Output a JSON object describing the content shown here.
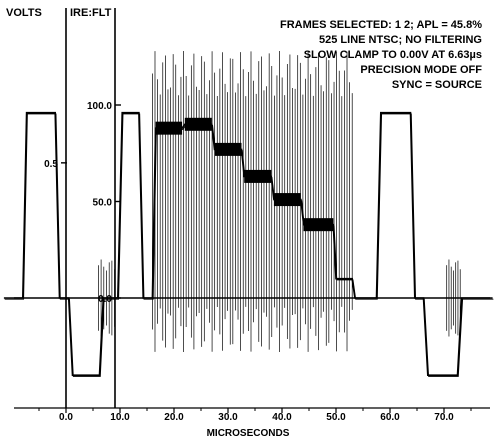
{
  "chart_data": {
    "type": "line",
    "title": "",
    "header_lines": [
      "FRAMES SELECTED: 1 2; APL = 45.8%",
      "525 LINE NTSC; NO FILTERING",
      "SLOW CLAMP TO 0.00V AT 6.63µs",
      "PRECISION MODE OFF",
      "SYNC = SOURCE"
    ],
    "left_axis_label": "VOLTS",
    "right_axis_label": "IRE:FLT",
    "xlabel": "MICROSECONDS",
    "xlim": [
      -11.5,
      79
    ],
    "ylim_ire": [
      -50,
      133
    ],
    "x_ticks": [
      {
        "v": 0,
        "label": "0.0"
      },
      {
        "v": 10,
        "label": "10.0"
      },
      {
        "v": 20,
        "label": "20.0"
      },
      {
        "v": 30,
        "label": "30.0"
      },
      {
        "v": 40,
        "label": "40.0"
      },
      {
        "v": 50,
        "label": "50.0"
      },
      {
        "v": 60,
        "label": "60.0"
      },
      {
        "v": 70,
        "label": "70.0"
      }
    ],
    "ire_ticks": [
      {
        "v": 100,
        "label": "100.0"
      },
      {
        "v": 50,
        "label": "50.0"
      },
      {
        "v": 0,
        "label": "0.0"
      }
    ],
    "volt_ticks": [
      {
        "v": 0.5,
        "label": "0.5"
      }
    ],
    "series": [
      {
        "points": [
          [
            -11.5,
            0
          ],
          [
            -8,
            0
          ],
          [
            -7.3,
            96
          ],
          [
            -2,
            96
          ],
          [
            -1.2,
            0
          ],
          [
            0.5,
            0
          ],
          [
            1.2,
            -40
          ],
          [
            6.2,
            -40
          ],
          [
            6.9,
            0
          ],
          [
            7.6,
            0
          ],
          [
            8.3,
            0
          ],
          [
            9.6,
            0
          ],
          [
            10.4,
            96
          ],
          [
            13.5,
            96
          ],
          [
            14.3,
            0
          ],
          [
            16,
            0
          ],
          [
            16.6,
            88
          ],
          [
            21.5,
            88
          ],
          [
            22,
            90
          ],
          [
            27,
            90
          ],
          [
            27.5,
            77
          ],
          [
            32.5,
            77
          ],
          [
            33,
            63
          ],
          [
            38,
            63
          ],
          [
            38.5,
            51
          ],
          [
            43.5,
            51
          ],
          [
            44,
            38
          ],
          [
            49.5,
            38
          ],
          [
            50,
            10
          ],
          [
            53,
            10
          ],
          [
            53.5,
            0
          ],
          [
            57.5,
            0
          ],
          [
            58.3,
            96
          ],
          [
            63.8,
            96
          ],
          [
            64.6,
            0
          ],
          [
            66.2,
            0
          ],
          [
            67,
            -40
          ],
          [
            72.5,
            -40
          ],
          [
            73.3,
            0
          ],
          [
            79,
            0
          ]
        ]
      }
    ],
    "bursts": [
      {
        "x0": 6.0,
        "x1": 9.0,
        "center": 0,
        "amp": 20
      },
      {
        "x0": 70.5,
        "x1": 73.0,
        "center": 0,
        "amp": 20
      },
      {
        "x0": 16.0,
        "x1": 53.0,
        "center": 50,
        "amp": 78
      }
    ]
  }
}
